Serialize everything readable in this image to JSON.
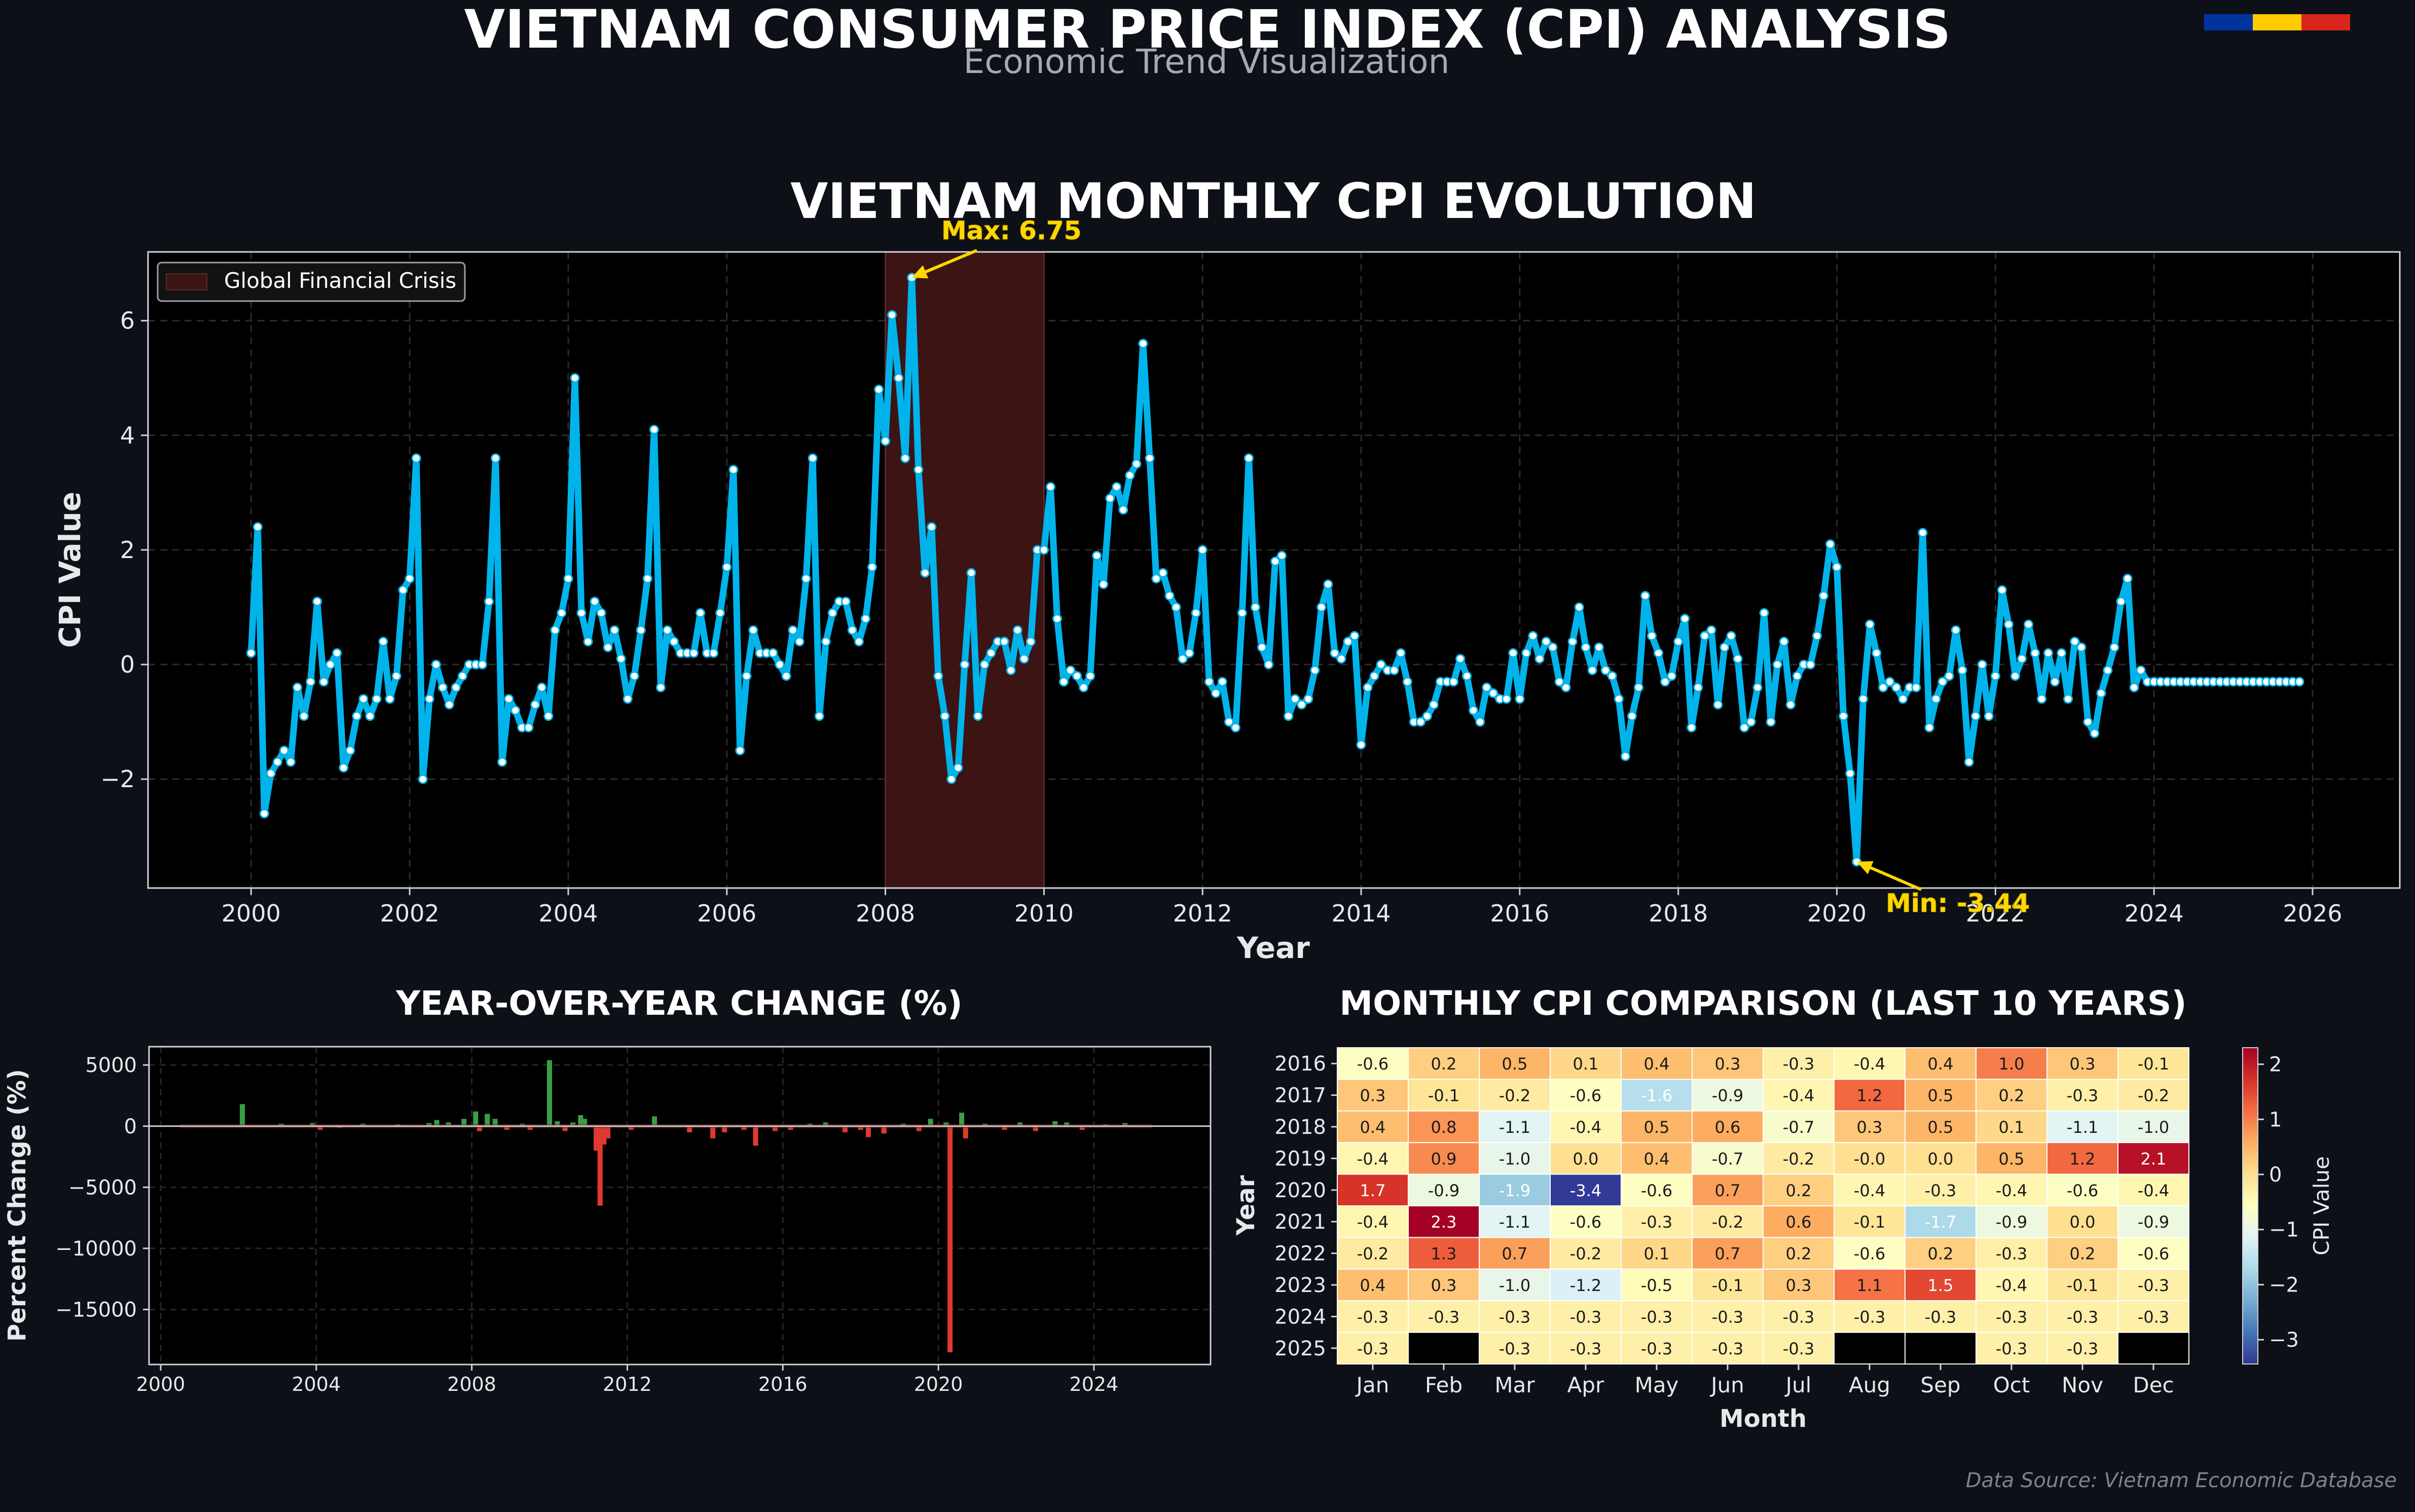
{
  "page": {
    "title": "VIETNAM CONSUMER PRICE INDEX (CPI) ANALYSIS",
    "subtitle": "Economic Trend Visualization",
    "footer": "Data Source: Vietnam Economic Database",
    "flag_colors": [
      "#0033a0",
      "#ffcc00",
      "#da251d"
    ]
  },
  "colors": {
    "background": "#0d1017",
    "panel": "#000000",
    "line": "#00b4eb",
    "annotation": "#ffd700",
    "crisis": "#3d1414",
    "bar_positive": "#3a9e46",
    "bar_negative": "#e03a30"
  },
  "chart_data": [
    {
      "id": "monthly",
      "type": "line",
      "title": "VIETNAM MONTHLY CPI EVOLUTION",
      "xlabel": "Year",
      "ylabel": "CPI Value",
      "xlim": [
        1998.7,
        2027.1
      ],
      "ylim": [
        -3.9,
        7.2
      ],
      "xticks": [
        2000,
        2002,
        2004,
        2006,
        2008,
        2010,
        2012,
        2014,
        2016,
        2018,
        2020,
        2022,
        2024,
        2026
      ],
      "yticks": [
        -2,
        0,
        2,
        4,
        6
      ],
      "grid": true,
      "legend": {
        "position": "top-left",
        "entries": [
          "Global Financial Crisis"
        ]
      },
      "shaded_region": {
        "label": "Global Financial Crisis",
        "x_start": 2008.0,
        "x_end": 2010.0
      },
      "annotations": [
        {
          "text": "Max: 6.75",
          "x": 2008.33,
          "y": 6.75
        },
        {
          "text": "Min: -3.44",
          "x": 2020.25,
          "y": -3.44
        }
      ],
      "series": [
        {
          "start": "2000-01",
          "frequency": "monthly",
          "values": [
            0.2,
            2.4,
            -2.6,
            -1.9,
            -1.7,
            -1.5,
            -1.7,
            -0.4,
            -0.9,
            -0.3,
            1.1,
            -0.3,
            0.0,
            0.2,
            -1.8,
            -1.5,
            -0.9,
            -0.6,
            -0.9,
            -0.6,
            0.4,
            -0.6,
            -0.2,
            1.3,
            1.5,
            3.6,
            -2.0,
            -0.6,
            0.0,
            -0.4,
            -0.7,
            -0.4,
            -0.2,
            0.0,
            0.0,
            0.0,
            1.1,
            3.6,
            -1.7,
            -0.6,
            -0.8,
            -1.1,
            -1.1,
            -0.7,
            -0.4,
            -0.9,
            0.6,
            0.9,
            1.5,
            5.0,
            0.9,
            0.4,
            1.1,
            0.9,
            0.3,
            0.6,
            0.1,
            -0.6,
            -0.2,
            0.6,
            1.5,
            4.1,
            -0.4,
            0.6,
            0.4,
            0.2,
            0.2,
            0.2,
            0.9,
            0.2,
            0.2,
            0.9,
            1.7,
            3.4,
            -1.5,
            -0.2,
            0.6,
            0.2,
            0.2,
            0.2,
            0.0,
            -0.2,
            0.6,
            0.4,
            1.5,
            3.6,
            -0.9,
            0.4,
            0.9,
            1.1,
            1.1,
            0.6,
            0.4,
            0.8,
            1.7,
            4.8,
            3.9,
            6.1,
            5.0,
            3.6,
            6.75,
            3.4,
            1.6,
            2.4,
            -0.2,
            -0.9,
            -2.0,
            -1.8,
            0.0,
            1.6,
            -0.9,
            0.0,
            0.2,
            0.4,
            0.4,
            -0.1,
            0.6,
            0.1,
            0.4,
            2.0,
            2.0,
            3.1,
            0.8,
            -0.3,
            -0.1,
            -0.2,
            -0.4,
            -0.2,
            1.9,
            1.4,
            2.9,
            3.1,
            2.7,
            3.3,
            3.5,
            5.6,
            3.6,
            1.5,
            1.6,
            1.2,
            1.0,
            0.1,
            0.2,
            0.9,
            2.0,
            -0.3,
            -0.5,
            -0.3,
            -1.0,
            -1.1,
            0.9,
            3.6,
            1.0,
            0.3,
            0.0,
            1.8,
            1.9,
            -0.9,
            -0.6,
            -0.7,
            -0.6,
            -0.1,
            1.0,
            1.4,
            0.2,
            0.1,
            0.4,
            0.5,
            -1.4,
            -0.4,
            -0.2,
            0.0,
            -0.1,
            -0.1,
            0.2,
            -0.3,
            -1.0,
            -1.0,
            -0.9,
            -0.7,
            -0.3,
            -0.3,
            -0.3,
            0.1,
            -0.2,
            -0.8,
            -1.0,
            -0.4,
            -0.5,
            -0.6,
            -0.6,
            0.2,
            -0.6,
            0.2,
            0.5,
            0.1,
            0.4,
            0.3,
            -0.3,
            -0.4,
            0.4,
            1.0,
            0.3,
            -0.1,
            0.3,
            -0.1,
            -0.2,
            -0.6,
            -1.6,
            -0.9,
            -0.4,
            1.2,
            0.5,
            0.2,
            -0.3,
            -0.2,
            0.4,
            0.8,
            -1.1,
            -0.4,
            0.5,
            0.6,
            -0.7,
            0.3,
            0.5,
            0.1,
            -1.1,
            -1.0,
            -0.4,
            0.9,
            -1.0,
            0.0,
            0.4,
            -0.7,
            -0.2,
            -0.0,
            0.0,
            0.5,
            1.2,
            2.1,
            1.7,
            -0.9,
            -1.9,
            -3.44,
            -0.6,
            0.7,
            0.2,
            -0.4,
            -0.3,
            -0.4,
            -0.6,
            -0.4,
            -0.4,
            2.3,
            -1.1,
            -0.6,
            -0.3,
            -0.2,
            0.6,
            -0.1,
            -1.7,
            -0.9,
            0.0,
            -0.9,
            -0.2,
            1.3,
            0.7,
            -0.2,
            0.1,
            0.7,
            0.2,
            -0.6,
            0.2,
            -0.3,
            0.2,
            -0.6,
            0.4,
            0.3,
            -1.0,
            -1.2,
            -0.5,
            -0.1,
            0.3,
            1.1,
            1.5,
            -0.4,
            -0.1,
            -0.3,
            -0.3,
            -0.3,
            -0.3,
            -0.3,
            -0.3,
            -0.3,
            -0.3,
            -0.3,
            -0.3,
            -0.3,
            -0.3,
            -0.3,
            -0.3,
            -0.3,
            -0.3,
            -0.3,
            -0.3,
            -0.3,
            -0.3,
            -0.3,
            -0.3,
            -0.3,
            -0.3
          ]
        }
      ]
    },
    {
      "id": "yoy",
      "type": "bar",
      "title": "YEAR-OVER-YEAR CHANGE (%)",
      "xlabel": "",
      "ylabel": "Percent Change (%)",
      "xlim": [
        1999.7,
        2027.0
      ],
      "ylim": [
        -19500,
        6500
      ],
      "xticks": [
        2000,
        2004,
        2008,
        2012,
        2016,
        2020,
        2024
      ],
      "yticks": [
        5000,
        0,
        -5000,
        -10000,
        -15000
      ],
      "ytick_labels": [
        "5000",
        "0",
        "−5000",
        "−10000",
        "−15000"
      ],
      "grid": true,
      "bars": [
        {
          "x": 2002.1,
          "value": 1800
        },
        {
          "x": 2003.1,
          "value": 200
        },
        {
          "x": 2003.9,
          "value": 250
        },
        {
          "x": 2004.1,
          "value": -300
        },
        {
          "x": 2004.6,
          "value": -150
        },
        {
          "x": 2005.2,
          "value": 200
        },
        {
          "x": 2006.1,
          "value": 150
        },
        {
          "x": 2006.9,
          "value": 250
        },
        {
          "x": 2007.1,
          "value": 500
        },
        {
          "x": 2007.4,
          "value": 300
        },
        {
          "x": 2007.8,
          "value": 600
        },
        {
          "x": 2008.1,
          "value": 1200
        },
        {
          "x": 2008.2,
          "value": -400
        },
        {
          "x": 2008.4,
          "value": 1000
        },
        {
          "x": 2008.6,
          "value": 600
        },
        {
          "x": 2008.9,
          "value": -300
        },
        {
          "x": 2009.3,
          "value": 200
        },
        {
          "x": 2009.5,
          "value": -300
        },
        {
          "x": 2010.0,
          "value": 5400
        },
        {
          "x": 2010.2,
          "value": 400
        },
        {
          "x": 2010.4,
          "value": -400
        },
        {
          "x": 2010.6,
          "value": 300
        },
        {
          "x": 2010.8,
          "value": 900
        },
        {
          "x": 2010.9,
          "value": 600
        },
        {
          "x": 2011.2,
          "value": -2000
        },
        {
          "x": 2011.3,
          "value": -6500
        },
        {
          "x": 2011.4,
          "value": -1500
        },
        {
          "x": 2011.5,
          "value": -1000
        },
        {
          "x": 2012.1,
          "value": -300
        },
        {
          "x": 2012.7,
          "value": 800
        },
        {
          "x": 2013.6,
          "value": -500
        },
        {
          "x": 2014.2,
          "value": -1000
        },
        {
          "x": 2014.5,
          "value": -500
        },
        {
          "x": 2015.0,
          "value": -300
        },
        {
          "x": 2015.3,
          "value": -1600
        },
        {
          "x": 2015.8,
          "value": -400
        },
        {
          "x": 2016.2,
          "value": -300
        },
        {
          "x": 2016.7,
          "value": 200
        },
        {
          "x": 2017.1,
          "value": 300
        },
        {
          "x": 2017.6,
          "value": -500
        },
        {
          "x": 2018.0,
          "value": -300
        },
        {
          "x": 2018.2,
          "value": -900
        },
        {
          "x": 2018.6,
          "value": -600
        },
        {
          "x": 2019.1,
          "value": 200
        },
        {
          "x": 2019.5,
          "value": -400
        },
        {
          "x": 2019.8,
          "value": 600
        },
        {
          "x": 2020.2,
          "value": 300
        },
        {
          "x": 2020.3,
          "value": -18500
        },
        {
          "x": 2020.6,
          "value": 1100
        },
        {
          "x": 2020.7,
          "value": -1000
        },
        {
          "x": 2021.2,
          "value": 200
        },
        {
          "x": 2021.7,
          "value": -300
        },
        {
          "x": 2022.1,
          "value": 300
        },
        {
          "x": 2022.5,
          "value": -400
        },
        {
          "x": 2023.0,
          "value": 400
        },
        {
          "x": 2023.3,
          "value": 300
        },
        {
          "x": 2023.7,
          "value": -300
        },
        {
          "x": 2024.3,
          "value": 150
        },
        {
          "x": 2024.8,
          "value": 250
        }
      ]
    },
    {
      "id": "heatmap",
      "type": "heatmap",
      "title": "MONTHLY CPI COMPARISON (LAST 10 YEARS)",
      "xlabel": "Month",
      "ylabel": "Year",
      "colorbar_label": "CPI Value",
      "colorbar_range": [
        -3.44,
        2.3
      ],
      "colorbar_ticks": [
        2,
        1,
        0,
        -1,
        -2,
        -3
      ],
      "colorbar_tick_labels": [
        "2",
        "1",
        "0",
        "−1",
        "−2",
        "−3"
      ],
      "colormap": "RdYlBu_r",
      "columns": [
        "Jan",
        "Feb",
        "Mar",
        "Apr",
        "May",
        "Jun",
        "Jul",
        "Aug",
        "Sep",
        "Oct",
        "Nov",
        "Dec"
      ],
      "rows": [
        "2016",
        "2017",
        "2018",
        "2019",
        "2020",
        "2021",
        "2022",
        "2023",
        "2024",
        "2025"
      ],
      "values": [
        [
          -0.6,
          0.2,
          0.5,
          0.1,
          0.4,
          0.3,
          -0.3,
          -0.4,
          0.4,
          1.0,
          0.3,
          -0.1
        ],
        [
          0.3,
          -0.1,
          -0.2,
          -0.6,
          -1.6,
          -0.9,
          -0.4,
          1.2,
          0.5,
          0.2,
          -0.3,
          -0.2
        ],
        [
          0.4,
          0.8,
          -1.1,
          -0.4,
          0.5,
          0.6,
          -0.7,
          0.3,
          0.5,
          0.1,
          -1.1,
          -1.0
        ],
        [
          -0.4,
          0.9,
          -1.0,
          0.0,
          0.4,
          -0.7,
          -0.2,
          -0.0,
          0.0,
          0.5,
          1.2,
          2.1
        ],
        [
          1.7,
          -0.9,
          -1.9,
          -3.4,
          -0.6,
          0.7,
          0.2,
          -0.4,
          -0.3,
          -0.4,
          -0.6,
          -0.4
        ],
        [
          -0.4,
          2.3,
          -1.1,
          -0.6,
          -0.3,
          -0.2,
          0.6,
          -0.1,
          -1.7,
          -0.9,
          0.0,
          -0.9
        ],
        [
          -0.2,
          1.3,
          0.7,
          -0.2,
          0.1,
          0.7,
          0.2,
          -0.6,
          0.2,
          -0.3,
          0.2,
          -0.6
        ],
        [
          0.4,
          0.3,
          -1.0,
          -1.2,
          -0.5,
          -0.1,
          0.3,
          1.1,
          1.5,
          -0.4,
          -0.1,
          -0.3
        ],
        [
          -0.3,
          -0.3,
          -0.3,
          -0.3,
          -0.3,
          -0.3,
          -0.3,
          -0.3,
          -0.3,
          -0.3,
          -0.3,
          -0.3
        ],
        [
          -0.3,
          null,
          -0.3,
          -0.3,
          -0.3,
          -0.3,
          -0.3,
          null,
          null,
          -0.3,
          -0.3,
          null
        ]
      ],
      "cell_labels": [
        [
          "-0.6",
          "0.2",
          "0.5",
          "0.1",
          "0.4",
          "0.3",
          "-0.3",
          "-0.4",
          "0.4",
          "1.0",
          "0.3",
          "-0.1"
        ],
        [
          "0.3",
          "-0.1",
          "-0.2",
          "-0.6",
          "-1.6",
          "-0.9",
          "-0.4",
          "1.2",
          "0.5",
          "0.2",
          "-0.3",
          "-0.2"
        ],
        [
          "0.4",
          "0.8",
          "-1.1",
          "-0.4",
          "0.5",
          "0.6",
          "-0.7",
          "0.3",
          "0.5",
          "0.1",
          "-1.1",
          "-1.0"
        ],
        [
          "-0.4",
          "0.9",
          "-1.0",
          "0.0",
          "0.4",
          "-0.7",
          "-0.2",
          "-0.0",
          "0.0",
          "0.5",
          "1.2",
          "2.1"
        ],
        [
          "1.7",
          "-0.9",
          "-1.9",
          "-3.4",
          "-0.6",
          "0.7",
          "0.2",
          "-0.4",
          "-0.3",
          "-0.4",
          "-0.6",
          "-0.4"
        ],
        [
          "-0.4",
          "2.3",
          "-1.1",
          "-0.6",
          "-0.3",
          "-0.2",
          "0.6",
          "-0.1",
          "-1.7",
          "-0.9",
          "0.0",
          "-0.9"
        ],
        [
          "-0.2",
          "1.3",
          "0.7",
          "-0.2",
          "0.1",
          "0.7",
          "0.2",
          "-0.6",
          "0.2",
          "-0.3",
          "0.2",
          "-0.6"
        ],
        [
          "0.4",
          "0.3",
          "-1.0",
          "-1.2",
          "-0.5",
          "-0.1",
          "0.3",
          "1.1",
          "1.5",
          "-0.4",
          "-0.1",
          "-0.3"
        ],
        [
          "-0.3",
          "-0.3",
          "-0.3",
          "-0.3",
          "-0.3",
          "-0.3",
          "-0.3",
          "-0.3",
          "-0.3",
          "-0.3",
          "-0.3",
          "-0.3"
        ],
        [
          "-0.3",
          "",
          "-0.3",
          "-0.3",
          "-0.3",
          "-0.3",
          "-0.3",
          "",
          "",
          "-0.3",
          "-0.3",
          ""
        ]
      ]
    }
  ]
}
